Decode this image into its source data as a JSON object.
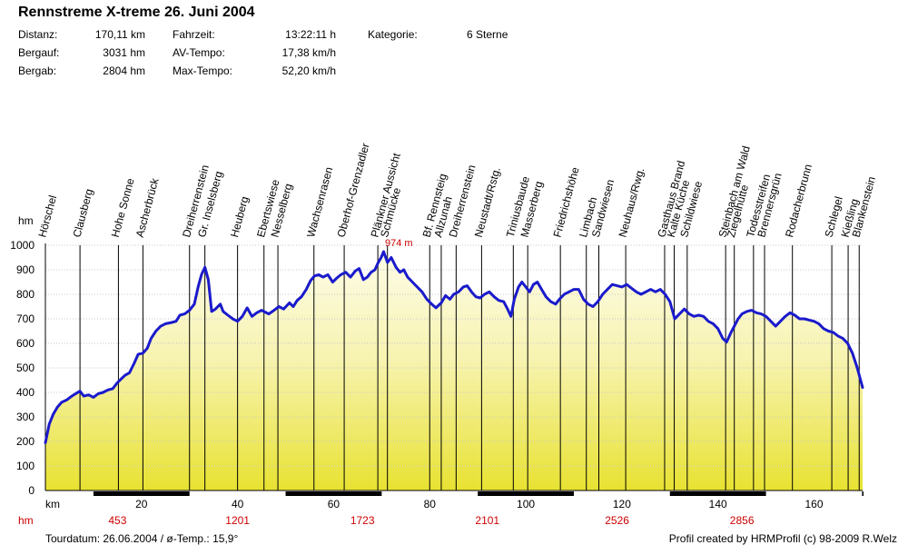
{
  "title": "Rennstreme X-treme 26. Juni 2004",
  "stats": [
    {
      "label": "Distanz:",
      "value": "170,11 km"
    },
    {
      "label": "Bergauf:",
      "value": "3031 hm"
    },
    {
      "label": "Bergab:",
      "value": "2804 hm"
    },
    {
      "label": "Fahrzeit:",
      "value": "13:22:11 h"
    },
    {
      "label": "AV-Tempo:",
      "value": "17,38 km/h"
    },
    {
      "label": "Max-Tempo:",
      "value": "52,20 km/h"
    },
    {
      "label": "Kategorie:",
      "value": "6 Sterne"
    }
  ],
  "footer": {
    "date": "Tourdatum: 26.06.2004  /  ø-Temp.: 15,9°",
    "credit": "Profil created by HRMProfil (c) 98-2009 R.Welz"
  },
  "chart_data": {
    "type": "area",
    "title": "Rennstreme X-treme 26. Juni 2004",
    "ylabel": "hm",
    "xlabel": "km",
    "xlim": [
      0,
      170.11
    ],
    "ylim": [
      0,
      1000
    ],
    "yticks": [
      0,
      100,
      200,
      300,
      400,
      500,
      600,
      700,
      800,
      900,
      1000
    ],
    "xticks": [
      20,
      40,
      60,
      80,
      100,
      120,
      140,
      160
    ],
    "max_label": "974 m",
    "max_point": [
      70.4,
      974
    ],
    "cumulative_climb": {
      "row_label": "hm",
      "items": [
        {
          "km": 15,
          "value": "453"
        },
        {
          "km": 40,
          "value": "1201"
        },
        {
          "km": 66,
          "value": "1723"
        },
        {
          "km": 92,
          "value": "2101"
        },
        {
          "km": 119,
          "value": "2526"
        },
        {
          "km": 145,
          "value": "2856"
        }
      ]
    },
    "profile": [
      [
        0,
        195
      ],
      [
        0.8,
        270
      ],
      [
        1.6,
        310
      ],
      [
        2.5,
        340
      ],
      [
        3.4,
        360
      ],
      [
        4.5,
        370
      ],
      [
        5.5,
        385
      ],
      [
        6.3,
        395
      ],
      [
        7.2,
        405
      ],
      [
        8.0,
        385
      ],
      [
        9.0,
        390
      ],
      [
        10.0,
        380
      ],
      [
        11.0,
        395
      ],
      [
        12.0,
        400
      ],
      [
        13.0,
        410
      ],
      [
        14.0,
        415
      ],
      [
        15.0,
        440
      ],
      [
        15.8,
        455
      ],
      [
        16.6,
        470
      ],
      [
        17.5,
        480
      ],
      [
        18.5,
        520
      ],
      [
        19.3,
        555
      ],
      [
        20.3,
        560
      ],
      [
        21.2,
        580
      ],
      [
        22.0,
        620
      ],
      [
        23.0,
        650
      ],
      [
        24.0,
        670
      ],
      [
        25.0,
        680
      ],
      [
        26.3,
        685
      ],
      [
        27.2,
        690
      ],
      [
        28.0,
        715
      ],
      [
        29.0,
        720
      ],
      [
        30.0,
        735
      ],
      [
        31.0,
        760
      ],
      [
        31.8,
        830
      ],
      [
        32.5,
        880
      ],
      [
        33.2,
        910
      ],
      [
        33.9,
        860
      ],
      [
        34.6,
        730
      ],
      [
        35.4,
        740
      ],
      [
        36.4,
        760
      ],
      [
        37.0,
        730
      ],
      [
        38.0,
        715
      ],
      [
        39.0,
        700
      ],
      [
        40.0,
        690
      ],
      [
        41.0,
        710
      ],
      [
        42.0,
        745
      ],
      [
        43.0,
        710
      ],
      [
        44.0,
        725
      ],
      [
        45.0,
        735
      ],
      [
        46.5,
        720
      ],
      [
        47.6,
        735
      ],
      [
        48.6,
        750
      ],
      [
        49.6,
        740
      ],
      [
        50.8,
        765
      ],
      [
        51.6,
        750
      ],
      [
        52.4,
        775
      ],
      [
        53.3,
        790
      ],
      [
        54.3,
        820
      ],
      [
        55.2,
        855
      ],
      [
        56.0,
        875
      ],
      [
        56.9,
        880
      ],
      [
        57.8,
        870
      ],
      [
        58.8,
        880
      ],
      [
        59.8,
        850
      ],
      [
        60.6,
        865
      ],
      [
        61.5,
        880
      ],
      [
        62.5,
        890
      ],
      [
        63.5,
        870
      ],
      [
        64.5,
        895
      ],
      [
        65.3,
        905
      ],
      [
        66.2,
        860
      ],
      [
        67.0,
        870
      ],
      [
        67.8,
        890
      ],
      [
        68.6,
        900
      ],
      [
        69.3,
        930
      ],
      [
        69.9,
        950
      ],
      [
        70.4,
        974
      ],
      [
        71.2,
        930
      ],
      [
        72.0,
        950
      ],
      [
        73.0,
        910
      ],
      [
        73.8,
        890
      ],
      [
        74.6,
        900
      ],
      [
        75.4,
        870
      ],
      [
        76.4,
        850
      ],
      [
        77.4,
        830
      ],
      [
        78.4,
        810
      ],
      [
        79.4,
        780
      ],
      [
        80.4,
        760
      ],
      [
        81.3,
        745
      ],
      [
        82.4,
        765
      ],
      [
        83.3,
        795
      ],
      [
        84.2,
        780
      ],
      [
        85.0,
        800
      ],
      [
        86.0,
        810
      ],
      [
        87.0,
        830
      ],
      [
        87.8,
        835
      ],
      [
        88.7,
        810
      ],
      [
        89.6,
        790
      ],
      [
        90.5,
        785
      ],
      [
        91.4,
        800
      ],
      [
        92.4,
        810
      ],
      [
        93.4,
        790
      ],
      [
        94.4,
        775
      ],
      [
        95.4,
        770
      ],
      [
        96.2,
        740
      ],
      [
        96.9,
        710
      ],
      [
        97.6,
        780
      ],
      [
        98.5,
        830
      ],
      [
        99.2,
        850
      ],
      [
        100.0,
        830
      ],
      [
        100.8,
        810
      ],
      [
        101.6,
        840
      ],
      [
        102.4,
        850
      ],
      [
        103.3,
        820
      ],
      [
        104.2,
        790
      ],
      [
        105.2,
        770
      ],
      [
        106.2,
        760
      ],
      [
        107.0,
        780
      ],
      [
        108.0,
        800
      ],
      [
        109.0,
        810
      ],
      [
        110.0,
        820
      ],
      [
        111.0,
        820
      ],
      [
        112.0,
        780
      ],
      [
        113.0,
        760
      ],
      [
        114.0,
        750
      ],
      [
        115.0,
        770
      ],
      [
        116.0,
        800
      ],
      [
        117.0,
        820
      ],
      [
        118.0,
        840
      ],
      [
        119.0,
        835
      ],
      [
        120.0,
        830
      ],
      [
        121.0,
        840
      ],
      [
        122.0,
        825
      ],
      [
        123.0,
        810
      ],
      [
        124.0,
        800
      ],
      [
        125.0,
        810
      ],
      [
        126.0,
        820
      ],
      [
        127.0,
        810
      ],
      [
        128.0,
        820
      ],
      [
        129.0,
        800
      ],
      [
        130.0,
        770
      ],
      [
        131.0,
        700
      ],
      [
        132.0,
        720
      ],
      [
        133.0,
        740
      ],
      [
        134.0,
        720
      ],
      [
        135.0,
        710
      ],
      [
        136.0,
        715
      ],
      [
        137.0,
        710
      ],
      [
        138.0,
        690
      ],
      [
        139.0,
        680
      ],
      [
        140.0,
        660
      ],
      [
        141.0,
        620
      ],
      [
        141.8,
        605
      ],
      [
        142.6,
        640
      ],
      [
        143.4,
        670
      ],
      [
        144.2,
        700
      ],
      [
        145.0,
        720
      ],
      [
        146.0,
        730
      ],
      [
        147.0,
        735
      ],
      [
        148.0,
        725
      ],
      [
        149.0,
        720
      ],
      [
        150.0,
        710
      ],
      [
        151.0,
        690
      ],
      [
        152.0,
        670
      ],
      [
        153.0,
        690
      ],
      [
        154.0,
        710
      ],
      [
        155.0,
        725
      ],
      [
        156.0,
        715
      ],
      [
        157.0,
        700
      ],
      [
        158.0,
        700
      ],
      [
        159.0,
        695
      ],
      [
        160.0,
        690
      ],
      [
        161.0,
        680
      ],
      [
        162.0,
        660
      ],
      [
        163.0,
        650
      ],
      [
        164.0,
        645
      ],
      [
        165.0,
        630
      ],
      [
        166.0,
        620
      ],
      [
        167.0,
        600
      ],
      [
        168.0,
        560
      ],
      [
        169.0,
        500
      ],
      [
        170.11,
        420
      ]
    ],
    "waypoints": [
      {
        "name": "Hörschel",
        "km": 0
      },
      {
        "name": "Clausberg",
        "km": 7.2
      },
      {
        "name": "Hohe Sonne",
        "km": 15.2
      },
      {
        "name": "Ascherbrück",
        "km": 20.3
      },
      {
        "name": "Dreiherrenstein",
        "km": 30.0
      },
      {
        "name": "Gr. Inselsberg",
        "km": 33.2
      },
      {
        "name": "Heuberg",
        "km": 40.0
      },
      {
        "name": "Ebertswiese",
        "km": 45.5
      },
      {
        "name": "Nesselberg",
        "km": 48.4
      },
      {
        "name": "Wachsenrasen",
        "km": 55.9
      },
      {
        "name": "Oberhof-Grenzadler",
        "km": 62.2
      },
      {
        "name": "Plänkner Aussicht",
        "km": 69.2
      },
      {
        "name": "Schmücke",
        "km": 71.2
      },
      {
        "name": "Bf. Rennsteig",
        "km": 80.0
      },
      {
        "name": "Allzunah",
        "km": 82.4
      },
      {
        "name": "Dreiherrenstein",
        "km": 85.5
      },
      {
        "name": "Neustadt/Rstg.",
        "km": 90.8
      },
      {
        "name": "Triniusbaude",
        "km": 97.4
      },
      {
        "name": "Masserberg",
        "km": 100.4
      },
      {
        "name": "Friedrichshöhe",
        "km": 107.2
      },
      {
        "name": "Limbach",
        "km": 112.6
      },
      {
        "name": "Sandwiesen",
        "km": 115.2
      },
      {
        "name": "Neuhaus/Rwg.",
        "km": 120.8
      },
      {
        "name": "Gasthaus Brand",
        "km": 128.9
      },
      {
        "name": "Kalte Küche",
        "km": 130.9
      },
      {
        "name": "Schildwiese",
        "km": 133.6
      },
      {
        "name": "Steinbach am Wald",
        "km": 141.6
      },
      {
        "name": "Ziegelhütte",
        "km": 143.4
      },
      {
        "name": "Todesstreifen",
        "km": 147.4
      },
      {
        "name": "Brennersgrün",
        "km": 149.7
      },
      {
        "name": "Rodacherbrunn",
        "km": 155.5
      },
      {
        "name": "Schlegel",
        "km": 163.7
      },
      {
        "name": "Kießling",
        "km": 167.1
      },
      {
        "name": "Blankenstein",
        "km": 169.4
      }
    ]
  }
}
